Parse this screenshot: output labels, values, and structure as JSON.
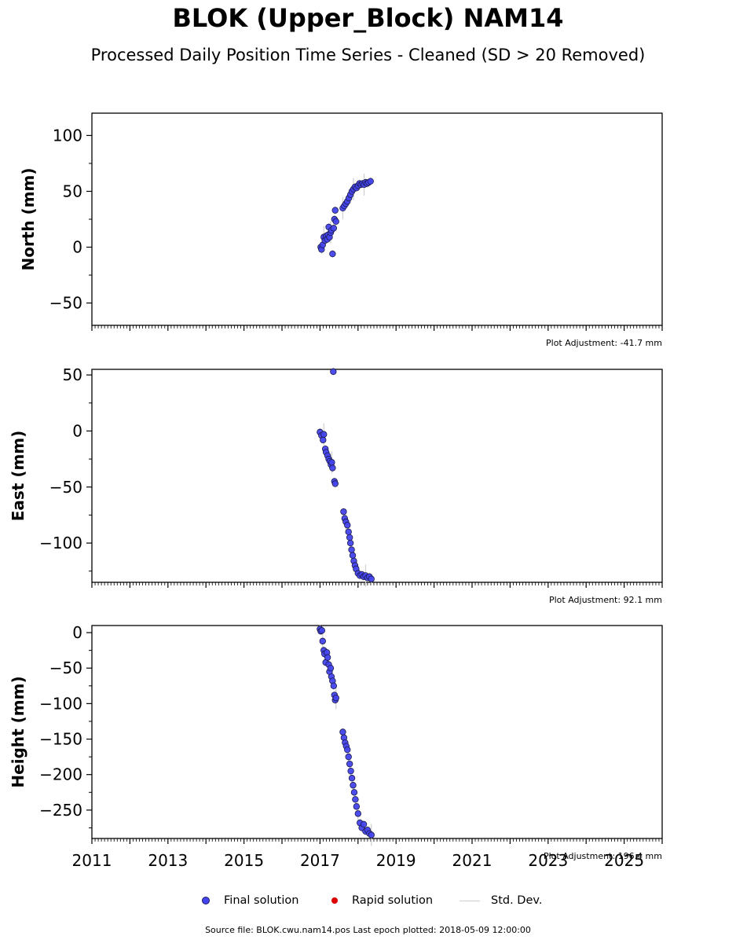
{
  "title": "BLOK (Upper_Block) NAM14",
  "subtitle": "Processed Daily Position Time Series - Cleaned (SD > 20 Removed)",
  "chart_data": [
    {
      "type": "scatter",
      "ylabel": "North (mm)",
      "ylim": [
        -70,
        120
      ],
      "yticks": [
        -50,
        0,
        50,
        100
      ],
      "xlim": [
        2011.0,
        2026.0
      ],
      "adjustment": "Plot Adjustment: -41.7 mm",
      "series": [
        {
          "x": [
            2017.02,
            2017.04,
            2017.07,
            2017.1,
            2017.13,
            2017.16,
            2017.19,
            2017.21,
            2017.23,
            2017.25,
            2017.28,
            2017.3,
            2017.33,
            2017.36,
            2017.38,
            2017.4,
            2017.42,
            2017.6,
            2017.64,
            2017.68,
            2017.72,
            2017.76,
            2017.8,
            2017.84,
            2017.88,
            2017.92,
            2017.96,
            2018.0,
            2018.04,
            2018.08,
            2018.12,
            2018.16,
            2018.2,
            2018.24,
            2018.28,
            2018.33
          ],
          "y": [
            0,
            -2,
            2,
            9,
            6,
            10,
            7,
            11,
            18,
            9,
            13,
            15,
            -6,
            17,
            25,
            33,
            23,
            35,
            37,
            39,
            41,
            44,
            47,
            50,
            52,
            54,
            53,
            55,
            57,
            56,
            57,
            56,
            58,
            57,
            58,
            59
          ]
        }
      ]
    },
    {
      "type": "scatter",
      "ylabel": "East (mm)",
      "ylim": [
        -135,
        55
      ],
      "yticks": [
        -100,
        -50,
        0,
        50
      ],
      "xlim": [
        2011.0,
        2026.0
      ],
      "adjustment": "Plot Adjustment: 92.1 mm",
      "series": [
        {
          "x": [
            2017.0,
            2017.04,
            2017.08,
            2017.1,
            2017.14,
            2017.16,
            2017.2,
            2017.23,
            2017.26,
            2017.29,
            2017.31,
            2017.33,
            2017.35,
            2017.38,
            2017.4,
            2017.62,
            2017.65,
            2017.68,
            2017.72,
            2017.75,
            2017.78,
            2017.8,
            2017.83,
            2017.86,
            2017.89,
            2017.92,
            2017.95,
            2018.0,
            2018.05,
            2018.1,
            2018.15,
            2018.2,
            2018.25,
            2018.3,
            2018.35
          ],
          "y": [
            -1,
            -4,
            -8,
            -3,
            -16,
            -19,
            -22,
            -25,
            -27,
            -30,
            -28,
            -33,
            53,
            -45,
            -47,
            -72,
            -78,
            -81,
            -84,
            -90,
            -95,
            -100,
            -106,
            -111,
            -116,
            -120,
            -123,
            -127,
            -129,
            -128,
            -130,
            -129,
            -131,
            -130,
            -132
          ]
        }
      ]
    },
    {
      "type": "scatter",
      "ylabel": "Height (mm)",
      "ylim": [
        -290,
        10
      ],
      "yticks": [
        -250,
        -200,
        -150,
        -100,
        -50,
        0
      ],
      "xlim": [
        2011.0,
        2026.0
      ],
      "xticks": [
        "2011",
        "2013",
        "2015",
        "2017",
        "2019",
        "2021",
        "2023",
        "2025"
      ],
      "adjustment": "Plot Adjustment: 196.4 mm",
      "series": [
        {
          "x": [
            2017.0,
            2017.02,
            2017.05,
            2017.07,
            2017.1,
            2017.12,
            2017.15,
            2017.18,
            2017.2,
            2017.23,
            2017.25,
            2017.28,
            2017.3,
            2017.33,
            2017.36,
            2017.38,
            2017.4,
            2017.42,
            2017.6,
            2017.63,
            2017.66,
            2017.69,
            2017.72,
            2017.75,
            2017.78,
            2017.81,
            2017.84,
            2017.87,
            2017.9,
            2017.93,
            2017.96,
            2018.0,
            2018.05,
            2018.1,
            2018.15,
            2018.2,
            2018.25,
            2018.3,
            2018.35
          ],
          "y": [
            5,
            2,
            3,
            -12,
            -25,
            -30,
            -42,
            -28,
            -35,
            -45,
            -55,
            -50,
            -62,
            -68,
            -75,
            -88,
            -95,
            -92,
            -140,
            -148,
            -155,
            -160,
            -165,
            -175,
            -185,
            -195,
            -205,
            -215,
            -225,
            -235,
            -245,
            -255,
            -268,
            -275,
            -270,
            -280,
            -278,
            -283,
            -285
          ]
        }
      ]
    }
  ],
  "legend": {
    "final": "Final solution",
    "rapid": "Rapid solution",
    "std": "Std. Dev.",
    "colors": {
      "final": "#4444ee",
      "rapid": "#dd0000",
      "std": "#cfcfcf"
    }
  },
  "footer": "Source file: BLOK.cwu.nam14.pos  Last epoch plotted: 2018-05-09 12:00:00"
}
